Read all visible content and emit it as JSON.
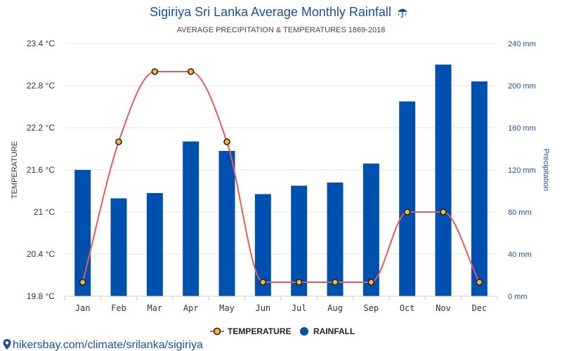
{
  "chart_data": {
    "type": "bar",
    "title": "Sigiriya Sri Lanka Average Monthly Rainfall",
    "title_icon": "umbrella-rain-icon",
    "subtitle": "AVERAGE PRECIPITATION & TEMPERATURES 1869-2018",
    "categories": [
      "Jan",
      "Feb",
      "Mar",
      "Apr",
      "May",
      "Jun",
      "Jul",
      "Aug",
      "Sep",
      "Oct",
      "Nov",
      "Dec"
    ],
    "series": [
      {
        "name": "TEMPERATURE",
        "type": "line",
        "axis": "left",
        "color": "#e8595a",
        "values": [
          20.0,
          22.0,
          23.0,
          23.0,
          22.0,
          20.0,
          20.0,
          20.0,
          20.0,
          21.0,
          21.0,
          20.0
        ]
      },
      {
        "name": "RAINFALL",
        "type": "bar",
        "axis": "right",
        "color": "#0050b0",
        "values": [
          120,
          93,
          98,
          147,
          138,
          97,
          105,
          108,
          126,
          185,
          220,
          204
        ]
      }
    ],
    "ylabel": "TEMPERATURE",
    "ylabel_right": "Precipitation",
    "ylim": [
      19.8,
      23.4
    ],
    "ylim_right": [
      0,
      240
    ],
    "yticks": [
      "19.8 °C",
      "20.4 °C",
      "21 °C",
      "21.6 °C",
      "22.2 °C",
      "22.8 °C",
      "23.4 °C"
    ],
    "yticks_right": [
      "0 mm",
      "40 mm",
      "80 mm",
      "120 mm",
      "160 mm",
      "200 mm",
      "240 mm"
    ],
    "grid": true,
    "legend_position": "bottom-center",
    "point_fill": "#f7b733"
  },
  "source": "hikersbay.com/climate/srilanka/sigiriya",
  "colors": {
    "title": "#1a5199",
    "grid": "#e6e6e6"
  }
}
